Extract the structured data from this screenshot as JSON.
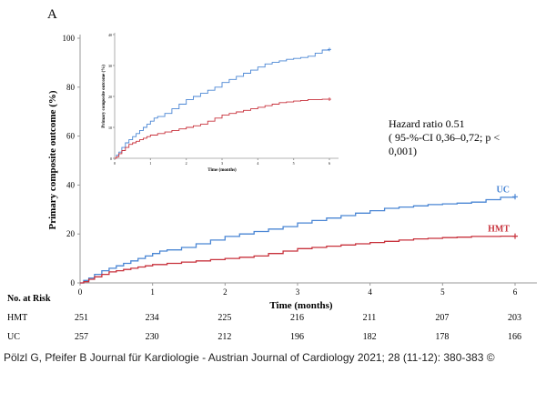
{
  "chart_data": {
    "type": "line",
    "panel_label": "A",
    "ylabel": "Primary composite outcome (%)",
    "xlabel": "Time (months)",
    "xlim": [
      0,
      6
    ],
    "ylim": [
      0,
      100
    ],
    "x_ticks": [
      0,
      1,
      2,
      3,
      4,
      5,
      6
    ],
    "y_ticks": [
      0,
      20,
      40,
      60,
      80,
      100
    ],
    "series": [
      {
        "name": "UC",
        "color": "#4a86d4",
        "x": [
          0,
          0.05,
          0.12,
          0.2,
          0.3,
          0.4,
          0.5,
          0.6,
          0.7,
          0.8,
          0.9,
          1.0,
          1.1,
          1.2,
          1.4,
          1.6,
          1.8,
          2.0,
          2.2,
          2.4,
          2.6,
          2.8,
          3.0,
          3.2,
          3.4,
          3.6,
          3.8,
          4.0,
          4.2,
          4.4,
          4.6,
          4.8,
          5.0,
          5.2,
          5.4,
          5.6,
          5.8,
          6.0
        ],
        "values": [
          0,
          1,
          2,
          3.5,
          5,
          6,
          7,
          8,
          9,
          10,
          11,
          12,
          13,
          13.5,
          14.5,
          16,
          17.5,
          19,
          20,
          21,
          22,
          23,
          24.5,
          25.5,
          26.5,
          27.5,
          28.5,
          29.5,
          30.5,
          31,
          31.5,
          32,
          32.3,
          32.6,
          33,
          34,
          35,
          35.2
        ]
      },
      {
        "name": "HMT",
        "color": "#c8323c",
        "x": [
          0,
          0.05,
          0.12,
          0.2,
          0.3,
          0.4,
          0.5,
          0.6,
          0.7,
          0.8,
          0.9,
          1.0,
          1.2,
          1.4,
          1.6,
          1.8,
          2.0,
          2.2,
          2.4,
          2.6,
          2.8,
          3.0,
          3.2,
          3.4,
          3.6,
          3.8,
          4.0,
          4.2,
          4.4,
          4.6,
          4.8,
          5.0,
          5.2,
          5.4,
          5.6,
          5.8,
          6.0
        ],
        "values": [
          0,
          0.5,
          1.5,
          2.5,
          3.5,
          4.5,
          5,
          5.5,
          6,
          6.5,
          7,
          7.5,
          8,
          8.5,
          9,
          9.5,
          10,
          10.5,
          11,
          12,
          13,
          14,
          14.5,
          15,
          15.5,
          16,
          16.5,
          17,
          17.5,
          18,
          18.2,
          18.5,
          18.7,
          19,
          19,
          19.1,
          19.1
        ]
      }
    ],
    "inset": {
      "ylabel": "Primary composite outcome (%)",
      "xlabel": "Time (months)",
      "xlim": [
        0,
        6
      ],
      "ylim": [
        0,
        40
      ],
      "x_ticks": [
        0,
        1,
        2,
        3,
        4,
        5,
        6
      ],
      "y_ticks": [
        0,
        10,
        20,
        30,
        40
      ]
    },
    "annotation": {
      "line1": "Hazard ratio 0.51",
      "line2": "( 95-%-CI 0,36–0,72; p <",
      "line3": "0,001)"
    },
    "risk_table": {
      "header": "No. at Risk",
      "rows": [
        {
          "label": "HMT",
          "values": [
            251,
            234,
            225,
            216,
            211,
            207,
            203
          ]
        },
        {
          "label": "UC",
          "values": [
            257,
            230,
            212,
            196,
            182,
            178,
            166
          ]
        }
      ]
    }
  },
  "citation": "Pölzl G, Pfeifer B Journal für Kardiologie - Austrian Journal of Cardiology 2021; 28 (11-12): 380-383 ©"
}
